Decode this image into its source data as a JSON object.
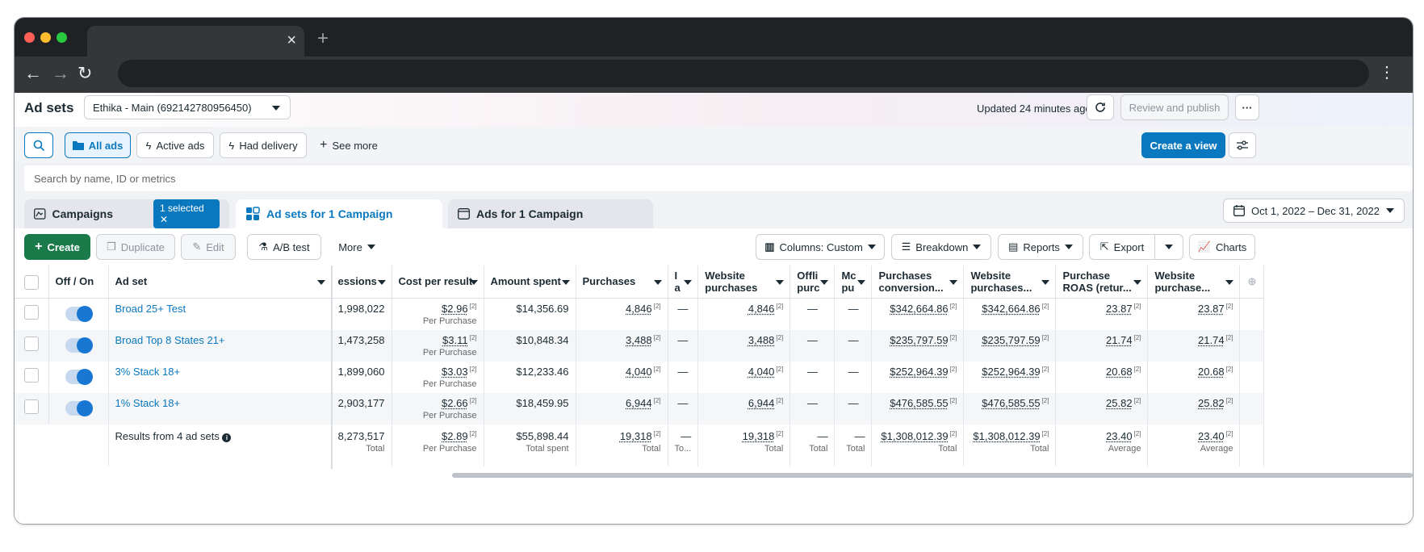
{
  "browser": {
    "new_tab": "+",
    "close": "×"
  },
  "header": {
    "title": "Ad sets",
    "account": "Ethika - Main (692142780956450)",
    "updated": "Updated 24 minutes ago",
    "review_publish": "Review and publish",
    "more": "···"
  },
  "filters": {
    "all_ads": "All ads",
    "active_ads": "Active ads",
    "had_delivery": "Had delivery",
    "see_more": "See more",
    "create_view": "Create a view"
  },
  "search": {
    "placeholder": "Search by name, ID or metrics"
  },
  "tabs": {
    "campaigns": "Campaigns",
    "selected_badge": "1 selected",
    "adsets": "Ad sets for 1 Campaign",
    "ads": "Ads for 1 Campaign",
    "date_range": "Oct 1, 2022 – Dec 31, 2022"
  },
  "toolbar": {
    "create": "Create",
    "duplicate": "Duplicate",
    "edit": "Edit",
    "ab_test": "A/B test",
    "more": "More",
    "columns": "Columns: Custom",
    "breakdown": "Breakdown",
    "reports": "Reports",
    "export": "Export",
    "charts": "Charts"
  },
  "table": {
    "headers": [
      "Off / On",
      "Ad set",
      "essions",
      "Cost per result",
      "Amount spent",
      "Purchases",
      "I a",
      "Website purchases",
      "Offli purc",
      "Mc pu",
      "Purchases conversion...",
      "Website purchases...",
      "Purchase ROAS (retur...",
      "Website purchase..."
    ],
    "rows": [
      {
        "name": "Broad 25+ Test",
        "impressions": "1,998,022",
        "cpr": "$2.96",
        "cpr_sub": "Per Purchase",
        "spent": "$14,356.69",
        "purchases": "4,846",
        "i": "—",
        "web_purchases": "4,846",
        "offline": "—",
        "mobile": "—",
        "conv_value": "$342,664.86",
        "web_value": "$342,664.86",
        "roas": "23.87",
        "web_roas": "23.87"
      },
      {
        "name": "Broad Top 8 States 21+",
        "impressions": "1,473,258",
        "cpr": "$3.11",
        "cpr_sub": "Per Purchase",
        "spent": "$10,848.34",
        "purchases": "3,488",
        "i": "—",
        "web_purchases": "3,488",
        "offline": "—",
        "mobile": "—",
        "conv_value": "$235,797.59",
        "web_value": "$235,797.59",
        "roas": "21.74",
        "web_roas": "21.74"
      },
      {
        "name": "3% Stack 18+",
        "impressions": "1,899,060",
        "cpr": "$3.03",
        "cpr_sub": "Per Purchase",
        "spent": "$12,233.46",
        "purchases": "4,040",
        "i": "—",
        "web_purchases": "4,040",
        "offline": "—",
        "mobile": "—",
        "conv_value": "$252,964.39",
        "web_value": "$252,964.39",
        "roas": "20.68",
        "web_roas": "20.68"
      },
      {
        "name": "1% Stack 18+",
        "impressions": "2,903,177",
        "cpr": "$2.66",
        "cpr_sub": "Per Purchase",
        "spent": "$18,459.95",
        "purchases": "6,944",
        "i": "—",
        "web_purchases": "6,944",
        "offline": "—",
        "mobile": "—",
        "conv_value": "$476,585.55",
        "web_value": "$476,585.55",
        "roas": "25.82",
        "web_roas": "25.82"
      }
    ],
    "totals": {
      "label": "Results from 4 ad sets",
      "impressions": "8,273,517",
      "impressions_sub": "Total",
      "cpr": "$2.89",
      "cpr_sub": "Per Purchase",
      "spent": "$55,898.44",
      "spent_sub": "Total spent",
      "purchases": "19,318",
      "purchases_sub": "Total",
      "i": "—",
      "i_sub": "To...",
      "web_purchases": "19,318",
      "web_purchases_sub": "Total",
      "offline": "—",
      "offline_sub": "Total",
      "mobile": "—",
      "mobile_sub": "Total",
      "conv_value": "$1,308,012.39",
      "conv_value_sub": "Total",
      "web_value": "$1,308,012.39",
      "web_value_sub": "Total",
      "roas": "23.40",
      "roas_sub": "Average",
      "web_roas": "23.40",
      "web_roas_sub": "Average"
    },
    "footnote": "[2]"
  },
  "colors": {
    "accent": "#0a78be",
    "create": "#1a7a4a"
  }
}
